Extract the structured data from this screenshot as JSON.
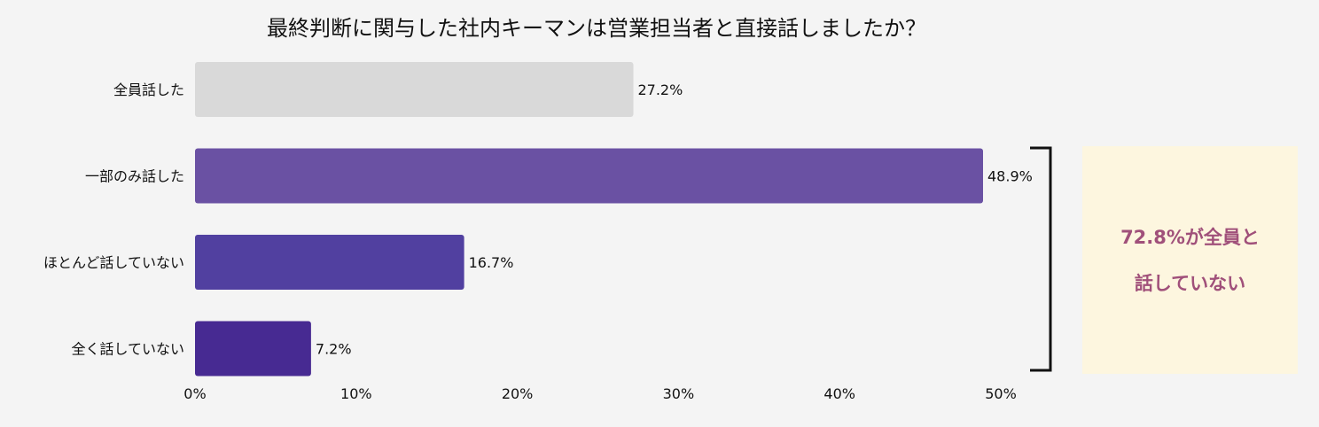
{
  "chart_data": {
    "type": "bar",
    "orientation": "horizontal",
    "title": "最終判断に関与した社内キーマンは営業担当者と直接話しましたか？",
    "categories": [
      "全員話した",
      "一部のみ話した",
      "ほとんど話していない",
      "全く話していない"
    ],
    "values": [
      27.2,
      48.9,
      16.7,
      7.2
    ],
    "data_labels": [
      "27.2%",
      "48.9%",
      "16.7%",
      "7.2%"
    ],
    "colors": [
      "#d9d9d9",
      "#6a51a3",
      "#5140a0",
      "#472a92"
    ],
    "xlim": [
      0,
      50
    ],
    "xticks": [
      {
        "value": 0,
        "label": "0%"
      },
      {
        "value": 10,
        "label": "10%"
      },
      {
        "value": 20,
        "label": "20%"
      },
      {
        "value": 30,
        "label": "30%"
      },
      {
        "value": 40,
        "label": "40%"
      },
      {
        "value": 50,
        "label": "50%"
      }
    ],
    "grid": false,
    "legend": "none",
    "annotation": {
      "bracket_groups": [
        "一部のみ話した",
        "ほとんど話していない",
        "全く話していない"
      ],
      "lines": [
        "72.8%が全員と",
        "話していない"
      ],
      "text_color": "#a0507a",
      "box_color": "#fdf6df"
    }
  }
}
